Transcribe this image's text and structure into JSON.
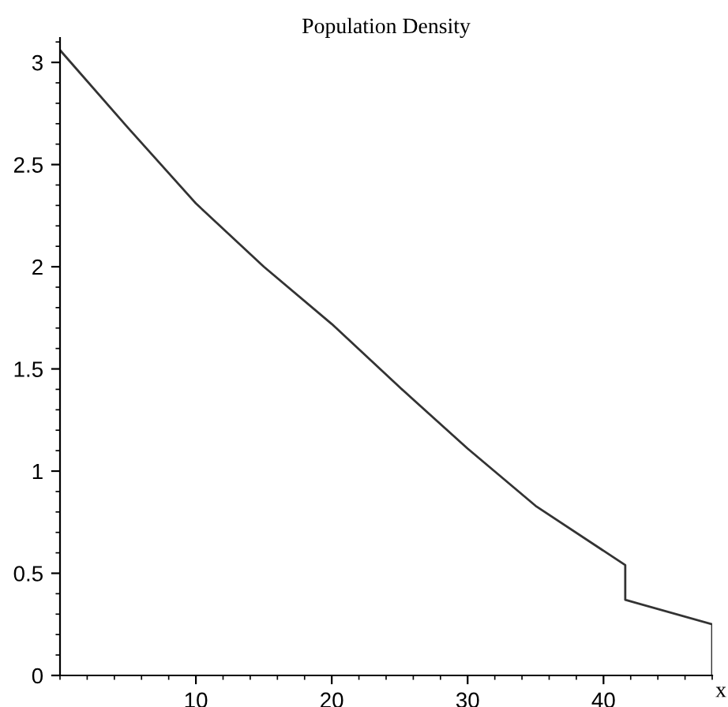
{
  "chart_data": {
    "type": "line",
    "title": "Population Density",
    "xlabel": "x",
    "x": [
      0,
      5,
      10,
      15,
      20,
      25,
      30,
      35,
      41.6,
      41.6,
      48,
      48
    ],
    "series": [
      {
        "color": "#333333",
        "values": [
          3.06,
          2.68,
          2.31,
          2.0,
          1.72,
          1.41,
          1.11,
          0.83,
          0.54,
          0.37,
          0.25,
          0
        ]
      }
    ],
    "xlim": [
      0,
      48
    ],
    "ylim": [
      0,
      3.12
    ],
    "xticks": [
      10,
      20,
      30,
      40
    ],
    "yticks": [
      0,
      0.5,
      1,
      1.5,
      2,
      2.5,
      3
    ],
    "grid": false,
    "legend": false,
    "marker": "none",
    "line_style": "solid"
  }
}
